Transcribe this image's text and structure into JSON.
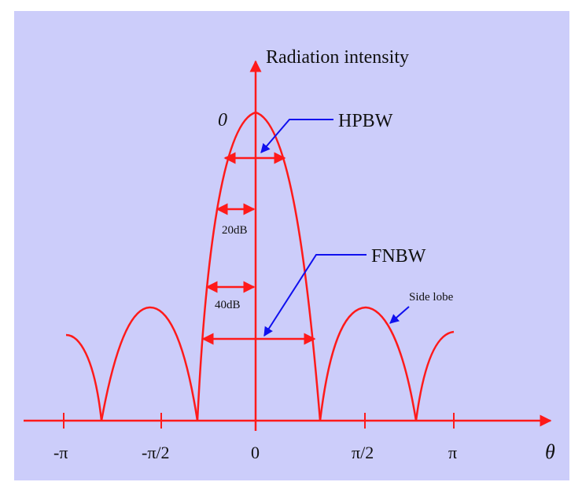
{
  "diagram": {
    "y_axis_label": "Radiation intensity",
    "x_axis_label": "θ",
    "peak_label": "0",
    "tick_labels": [
      "-π",
      "-π/2",
      "0",
      "π/2",
      "π"
    ],
    "annotations": {
      "hpbw": "HPBW",
      "fnbw": "FNBW",
      "side_lobe": "Side lobe",
      "level_20db": "20dB",
      "level_40db": "40dB"
    },
    "colors": {
      "background": "#cccdfa",
      "pattern": "#ff1a1a",
      "axes": "#ff1a1a",
      "pointers": "#1010ee",
      "text": "#111111"
    }
  }
}
